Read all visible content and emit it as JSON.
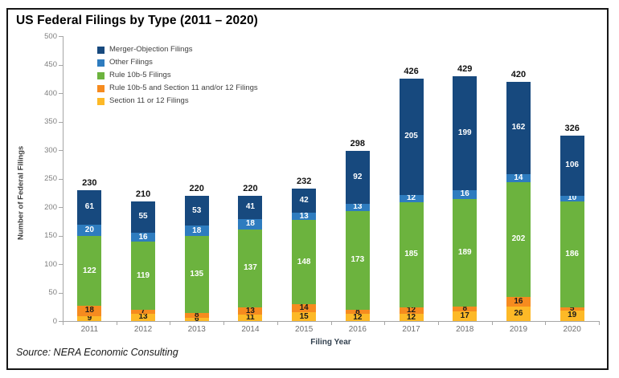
{
  "window": {
    "title": "US Federal Filings by Type (2011 – 2020)"
  },
  "source_note": "Source: NERA Economic Consulting",
  "colors": {
    "frame_border": "#161616",
    "axis_line": "#a6a6a6",
    "tick_label": "#7f7f7f",
    "merger_objection": "#17497E",
    "other_filings": "#2E7CBF",
    "rule_10b5": "#6CB33E",
    "rule_10b5_and_sec_11_12": "#F68B1F",
    "section_11_12": "#FDB927"
  },
  "chart_data": {
    "type": "bar",
    "stacked": true,
    "title": "US Federal Filings by Type (2011 – 2020)",
    "xlabel": "Filing Year",
    "ylabel": "Number of Federal Filings",
    "ylim": [
      0,
      500
    ],
    "ytick_step": 50,
    "ytick_labels": [
      "0",
      "50",
      "100",
      "150",
      "200",
      "250",
      "300",
      "350",
      "400",
      "450",
      "500"
    ],
    "grid": false,
    "legend_position": "inside-top-left",
    "categories": [
      "2011",
      "2012",
      "2013",
      "2014",
      "2015",
      "2016",
      "2017",
      "2018",
      "2019",
      "2020"
    ],
    "totals": [
      230,
      210,
      220,
      220,
      232,
      298,
      426,
      429,
      420,
      326
    ],
    "series": [
      {
        "name": "section-11-or-12-filings",
        "legend_label": "Section 11 or 12 Filings",
        "color": "#FDB927",
        "label_color": "#1a1a1a",
        "values": [
          9,
          13,
          6,
          11,
          15,
          12,
          12,
          17,
          26,
          19
        ]
      },
      {
        "name": "rule-10b5-and-section-11-12-filings",
        "legend_label": "Rule 10b-5 and Section 11 and/or 12 Filings",
        "color": "#F68B1F",
        "label_color": "#1a1a1a",
        "values": [
          18,
          7,
          8,
          13,
          14,
          8,
          12,
          8,
          16,
          5
        ]
      },
      {
        "name": "rule-10b5-filings",
        "legend_label": "Rule 10b-5 Filings",
        "color": "#6CB33E",
        "label_color": "#ffffff",
        "values": [
          122,
          119,
          135,
          137,
          148,
          173,
          185,
          189,
          202,
          186
        ]
      },
      {
        "name": "other-filings",
        "legend_label": "Other Filings",
        "color": "#2E7CBF",
        "label_color": "#ffffff",
        "values": [
          20,
          16,
          18,
          18,
          13,
          13,
          12,
          16,
          14,
          10
        ]
      },
      {
        "name": "merger-objection-filings",
        "legend_label": "Merger-Objection Filings",
        "color": "#17497E",
        "label_color": "#ffffff",
        "values": [
          61,
          55,
          53,
          41,
          42,
          92,
          205,
          199,
          162,
          106
        ]
      }
    ]
  }
}
